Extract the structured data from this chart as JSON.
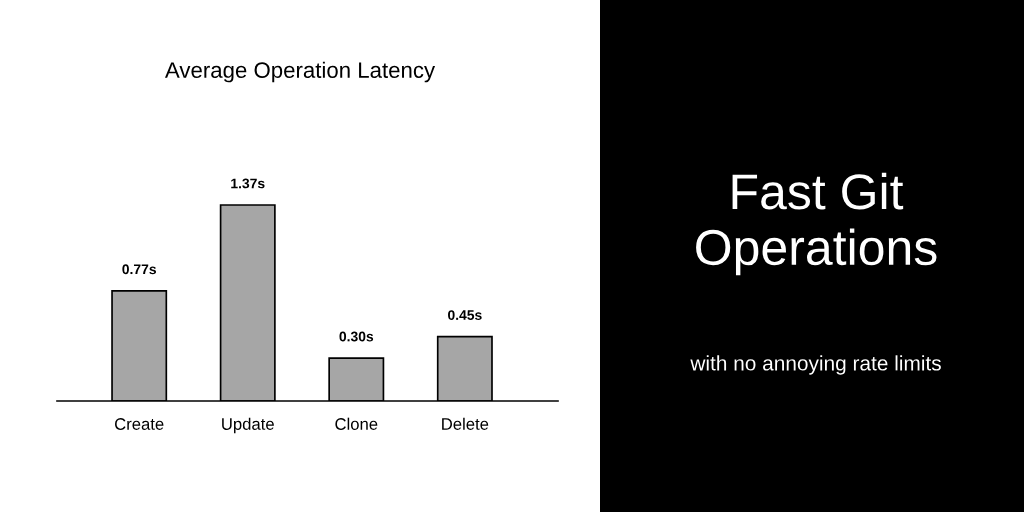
{
  "chart_data": {
    "type": "bar",
    "title": "Average Operation Latency",
    "categories": [
      "Create",
      "Update",
      "Clone",
      "Delete"
    ],
    "values": [
      0.77,
      1.37,
      0.3,
      0.45
    ],
    "value_labels": [
      "0.77s",
      "1.37s",
      "0.30s",
      "0.45s"
    ],
    "color": "#a6a6a6",
    "annotations": [
      "Fast Git\nOperations",
      "with no annoying rate limits"
    ]
  }
}
